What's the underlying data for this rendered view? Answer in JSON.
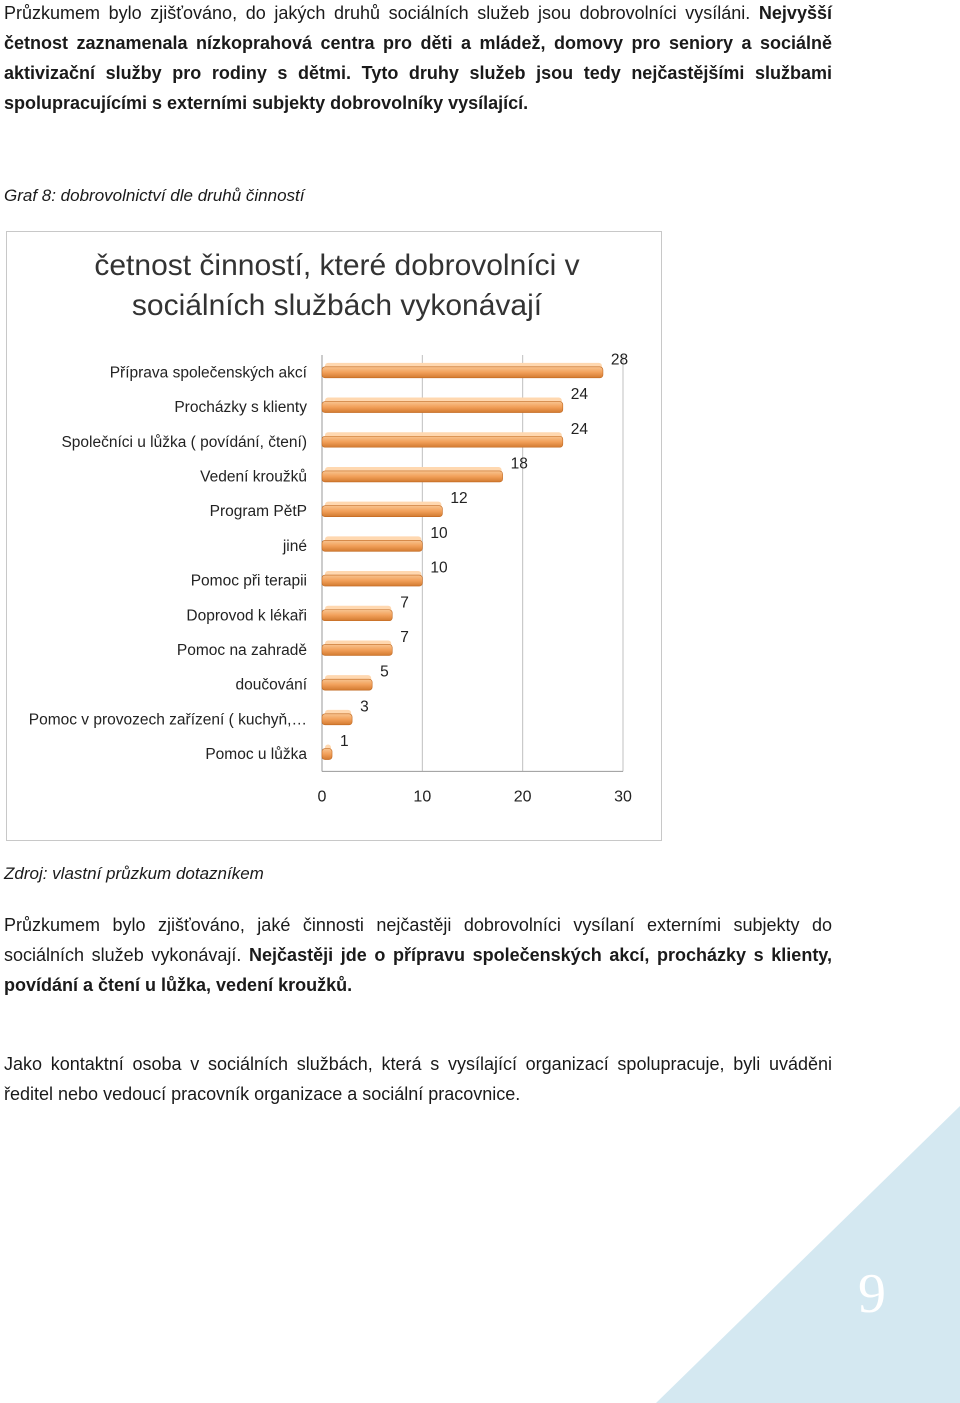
{
  "intro": {
    "line1": "Průzkumem bylo zjišťováno, do jakých druhů sociálních služeb jsou dobrovolníci vysíláni.",
    "bold_part": "Nejvyšší četnost zaznamenala nízkoprahová centra pro děti a mládež, domovy pro seniory a sociálně aktivizační služby pro rodiny s dětmi.",
    "bold_part2": "Tyto druhy služeb jsou tedy nejčastějšími službami spolupracujícími s externími subjekty dobrovolníky vysílající."
  },
  "figure_caption": "Graf 8: dobrovolnictví dle druhů činností",
  "chart_data": {
    "type": "bar",
    "orientation": "horizontal",
    "title": "četnost činností, které dobrovolníci v sociálních službách vykonávají",
    "categories": [
      "Příprava společenských akcí",
      "Procházky s klienty",
      "Společníci u lůžka ( povídání, čtení)",
      "Vedení kroužků",
      "Program PětP",
      "jiné",
      "Pomoc při terapii",
      "Doprovod k lékaři",
      "Pomoc na zahradě",
      "doučování",
      "Pomoc v provozech zařízení ( kuchyň,…",
      "Pomoc u lůžka"
    ],
    "values": [
      28,
      24,
      24,
      18,
      12,
      10,
      10,
      7,
      7,
      5,
      3,
      1
    ],
    "xlim": [
      0,
      30
    ],
    "xticks": [
      "0",
      "10",
      "20",
      "30"
    ],
    "bar_color": "#f2a05a",
    "legend": "none",
    "grid": true
  },
  "source_caption": "Zdroj: vlastní průzkum dotazníkem",
  "para2": {
    "normal": "Průzkumem bylo zjišťováno, jaké činnosti nejčastěji dobrovolníci vysílaní externími subjekty do sociálních služeb vykonávají.",
    "bold": "Nejčastěji jde o přípravu společenských akcí, procházky s klienty, povídání a čtení u lůžka, vedení kroužků."
  },
  "para3": "Jako kontaktní osoba v sociálních službách, která s vysílající organizací spolupracuje, byli uváděni ředitel nebo vedoucí pracovník organizace a sociální pracovnice.",
  "page_number": "9",
  "colors": {
    "corner": "#d4e8f1",
    "text": "#1a1a1a"
  }
}
